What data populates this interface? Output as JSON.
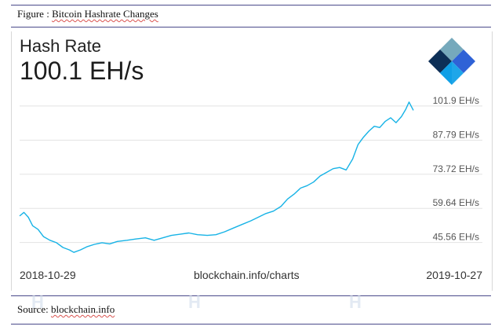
{
  "figure": {
    "caption_prefix": "Figure : ",
    "caption_title": "Bitcoin Hashrate Changes",
    "source_prefix": "Source: ",
    "source_name": "blockchain.info"
  },
  "widget": {
    "metric_label": "Hash Rate",
    "metric_value": "100.1 EH/s",
    "start_date": "2018-10-29",
    "end_date": "2019-10-27",
    "footer_url": "blockchain.info/charts",
    "colors": {
      "line": "#17b3e6",
      "grid": "#e3e3e3",
      "tick_text": "#555555"
    },
    "logo_icon": "blockchain-cube-logo-icon",
    "watermark_text": "H"
  },
  "chart_data": {
    "type": "line",
    "title": "",
    "xlabel": "",
    "ylabel": "",
    "x_range": [
      "2018-10-29",
      "2019-10-27"
    ],
    "yticks": [
      45.56,
      59.64,
      73.72,
      87.79,
      101.9
    ],
    "ytick_labels": [
      "45.56 EH/s",
      "59.64 EH/s",
      "73.72 EH/s",
      "87.79 EH/s",
      "101.9 EH/s"
    ],
    "ylim": [
      38,
      108
    ],
    "grid": true,
    "series": [
      {
        "points": [
          [
            "2018-10-29",
            56.5
          ],
          [
            "2018-11-02",
            58.0
          ],
          [
            "2018-11-06",
            56.0
          ],
          [
            "2018-11-10",
            52.5
          ],
          [
            "2018-11-15",
            51.0
          ],
          [
            "2018-11-20",
            48.0
          ],
          [
            "2018-11-26",
            46.5
          ],
          [
            "2018-12-02",
            45.5
          ],
          [
            "2018-12-08",
            43.5
          ],
          [
            "2018-12-14",
            42.5
          ],
          [
            "2018-12-18",
            41.5
          ],
          [
            "2018-12-24",
            42.5
          ],
          [
            "2018-12-30",
            43.8
          ],
          [
            "2019-01-06",
            44.8
          ],
          [
            "2019-01-13",
            45.5
          ],
          [
            "2019-01-20",
            45.0
          ],
          [
            "2019-01-27",
            46.0
          ],
          [
            "2019-02-05",
            46.5
          ],
          [
            "2019-02-13",
            47.0
          ],
          [
            "2019-02-22",
            47.5
          ],
          [
            "2019-03-02",
            46.5
          ],
          [
            "2019-03-10",
            47.5
          ],
          [
            "2019-03-18",
            48.5
          ],
          [
            "2019-03-26",
            49.0
          ],
          [
            "2019-04-03",
            49.5
          ],
          [
            "2019-04-11",
            48.8
          ],
          [
            "2019-04-20",
            48.5
          ],
          [
            "2019-04-28",
            48.8
          ],
          [
            "2019-05-06",
            50.0
          ],
          [
            "2019-05-14",
            51.5
          ],
          [
            "2019-05-22",
            53.0
          ],
          [
            "2019-05-30",
            54.5
          ],
          [
            "2019-06-06",
            56.0
          ],
          [
            "2019-06-13",
            57.5
          ],
          [
            "2019-06-20",
            58.5
          ],
          [
            "2019-06-27",
            60.5
          ],
          [
            "2019-07-03",
            63.5
          ],
          [
            "2019-07-09",
            65.5
          ],
          [
            "2019-07-15",
            68.0
          ],
          [
            "2019-07-21",
            69.0
          ],
          [
            "2019-07-27",
            70.5
          ],
          [
            "2019-08-02",
            73.0
          ],
          [
            "2019-08-08",
            74.5
          ],
          [
            "2019-08-14",
            76.0
          ],
          [
            "2019-08-20",
            76.5
          ],
          [
            "2019-08-26",
            75.5
          ],
          [
            "2019-09-01",
            80.0
          ],
          [
            "2019-09-06",
            86.0
          ],
          [
            "2019-09-11",
            89.0
          ],
          [
            "2019-09-16",
            91.5
          ],
          [
            "2019-09-21",
            93.5
          ],
          [
            "2019-09-26",
            93.0
          ],
          [
            "2019-10-01",
            95.5
          ],
          [
            "2019-10-06",
            97.0
          ],
          [
            "2019-10-11",
            95.0
          ],
          [
            "2019-10-16",
            97.5
          ],
          [
            "2019-10-20",
            100.5
          ],
          [
            "2019-10-23",
            103.5
          ],
          [
            "2019-10-27",
            100.1
          ]
        ]
      }
    ]
  }
}
